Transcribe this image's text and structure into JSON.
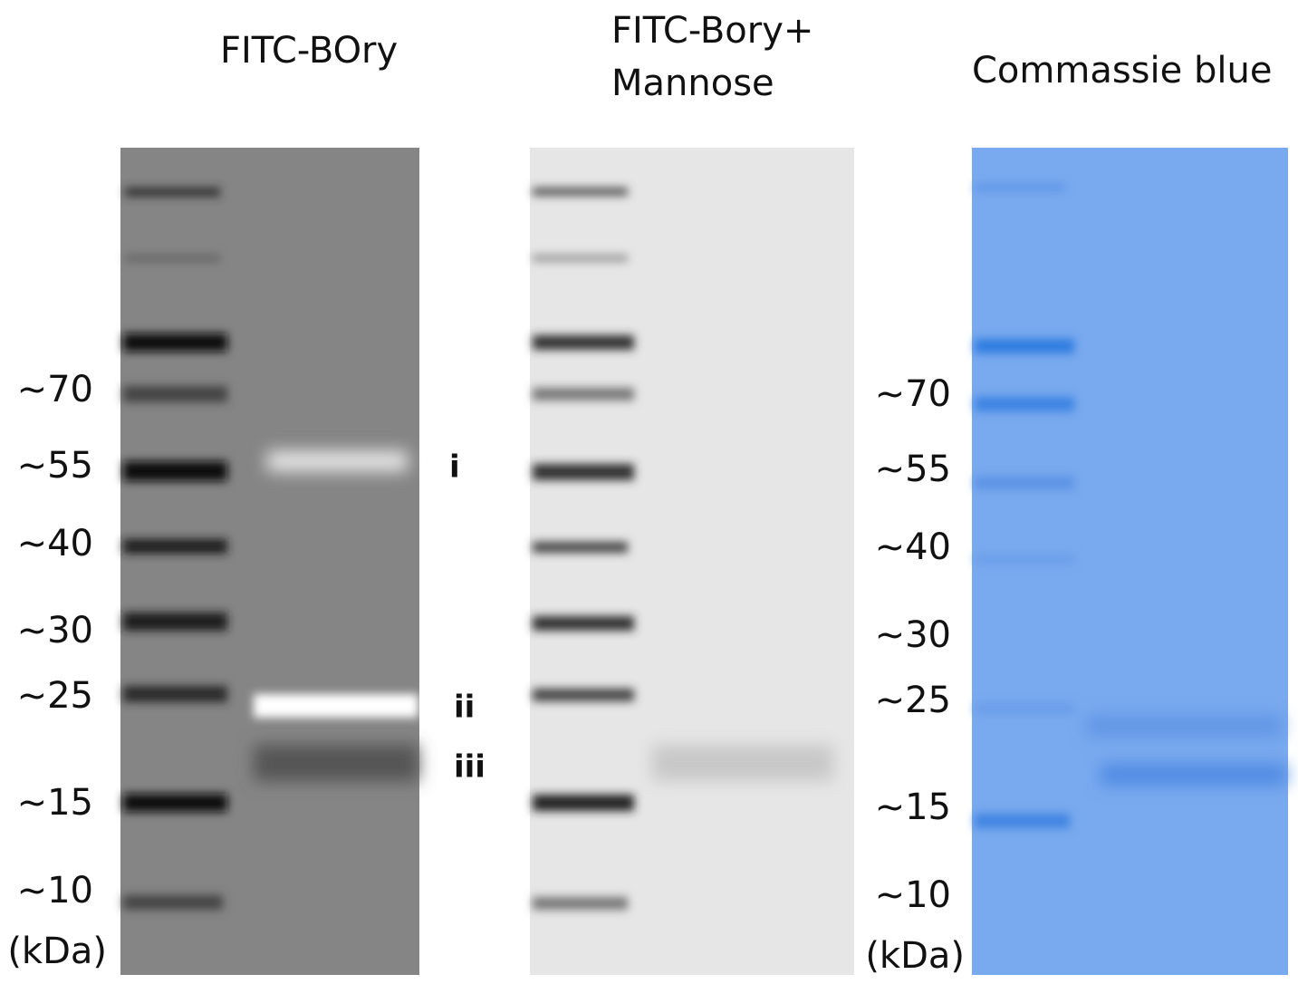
{
  "panels": [
    {
      "title": [
        "FITC-BOry"
      ]
    },
    {
      "title": [
        "FITC-Bory+",
        "Mannose"
      ]
    },
    {
      "title": [
        "Commassie blue"
      ]
    }
  ],
  "markers_left": {
    "labels": [
      "~70",
      "~55",
      "~40",
      "~30",
      "~25",
      "~15",
      "~10"
    ],
    "unit": "(kDa)"
  },
  "band_labels": [
    "i",
    "ii",
    "iii"
  ],
  "markers_right": {
    "labels": [
      "~70",
      "~55",
      "~40",
      "~30",
      "~25",
      "~15",
      "~10"
    ],
    "unit": "(kDa)"
  }
}
